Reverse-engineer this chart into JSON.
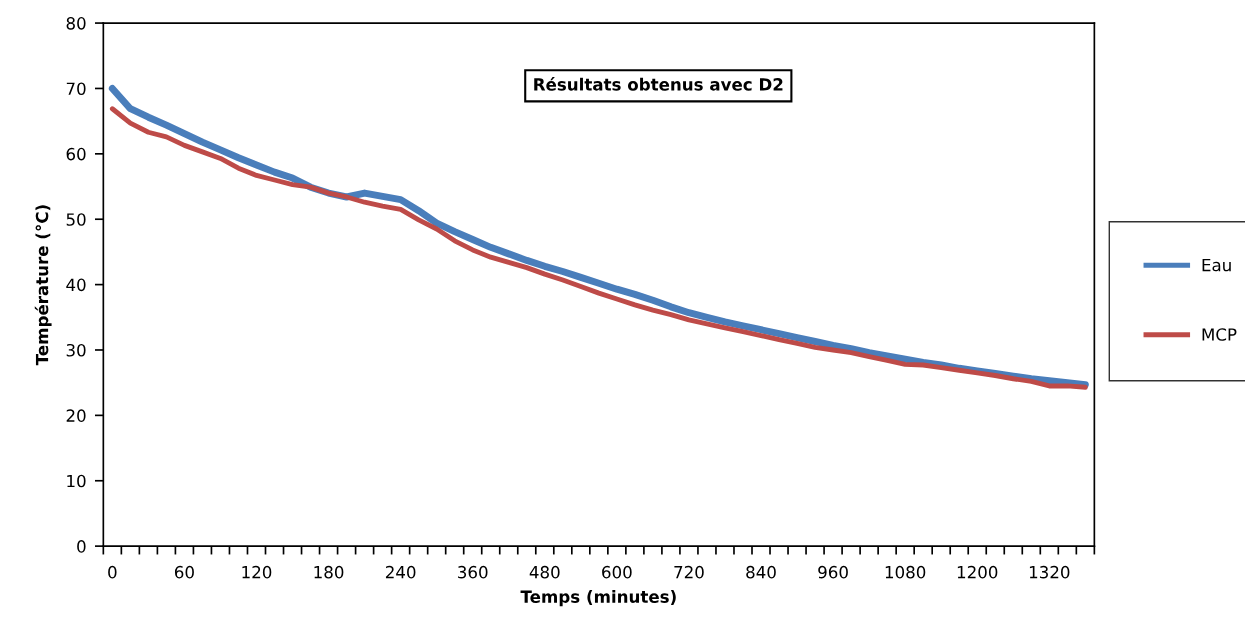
{
  "chart_data": {
    "type": "line",
    "title": "Résultats obtenus avec D2",
    "xlabel": "Temps (minutes)",
    "ylabel": "Température (°C)",
    "categories": [
      "0",
      null,
      null,
      null,
      "60",
      null,
      null,
      null,
      "120",
      null,
      null,
      null,
      "180",
      null,
      null,
      null,
      "240",
      null,
      null,
      null,
      "360",
      null,
      null,
      null,
      "480",
      null,
      null,
      null,
      "600",
      null,
      null,
      null,
      "720",
      null,
      null,
      null,
      "840",
      null,
      null,
      null,
      "960",
      null,
      null,
      null,
      "1080",
      null,
      null,
      null,
      "1200",
      null,
      null,
      null,
      "1320",
      null,
      null
    ],
    "series": [
      {
        "name": "Eau",
        "color": "#4a7ebb",
        "values": [
          70.0,
          66.9,
          65.6,
          64.4,
          63.1,
          61.8,
          60.6,
          59.4,
          58.3,
          57.2,
          56.3,
          54.9,
          54.0,
          53.4,
          54.0,
          53.5,
          53.0,
          51.3,
          49.4,
          48.1,
          46.9,
          45.7,
          44.7,
          43.7,
          42.8,
          42.0,
          41.1,
          40.2,
          39.3,
          38.5,
          37.6,
          36.6,
          35.7,
          35.0,
          34.3,
          33.7,
          33.1,
          32.5,
          31.9,
          31.3,
          30.7,
          30.2,
          29.6,
          29.1,
          28.6,
          28.1,
          27.7,
          27.2,
          26.8,
          26.4,
          26.0,
          25.6,
          25.3,
          25.0,
          24.7
        ]
      },
      {
        "name": "MCP",
        "color": "#be4b48",
        "values": [
          66.9,
          64.7,
          63.3,
          62.6,
          61.3,
          60.3,
          59.3,
          57.8,
          56.7,
          56.0,
          55.3,
          54.9,
          54.0,
          53.4,
          52.6,
          52.0,
          51.5,
          49.9,
          48.5,
          46.7,
          45.3,
          44.2,
          43.4,
          42.6,
          41.6,
          40.7,
          39.7,
          38.7,
          37.8,
          36.9,
          36.1,
          35.4,
          34.6,
          34.0,
          33.4,
          32.8,
          32.2,
          31.6,
          31.0,
          30.4,
          30.0,
          29.6,
          29.0,
          28.4,
          27.8,
          27.7,
          27.3,
          26.9,
          26.5,
          26.1,
          25.6,
          25.2,
          24.5,
          24.5,
          24.3
        ]
      }
    ],
    "ylim": [
      0,
      80
    ],
    "yticks": [
      0,
      10,
      20,
      30,
      40,
      50,
      60,
      70,
      80
    ],
    "grid": false,
    "legend": "right",
    "marker": "none",
    "line_style": "solid"
  }
}
